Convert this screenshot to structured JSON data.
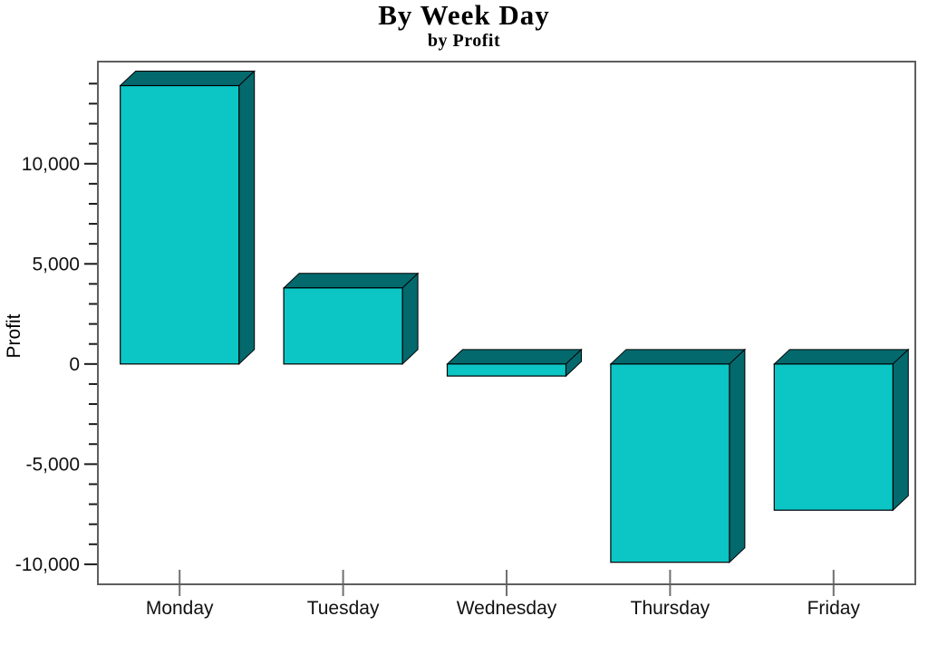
{
  "chart_data": {
    "type": "bar",
    "variant": "3d-block-bars",
    "title": "By Week Day",
    "subtitle": "by Profit",
    "xlabel": "",
    "ylabel": "Profit",
    "categories": [
      "Monday",
      "Tuesday",
      "Wednesday",
      "Thursday",
      "Friday"
    ],
    "values": [
      13900,
      3800,
      -600,
      -9900,
      -7300
    ],
    "ylim": [
      -11000,
      15100
    ],
    "y_major_ticks": [
      {
        "value": 10000,
        "label": "10,000"
      },
      {
        "value": 5000,
        "label": "5,000"
      },
      {
        "value": 0,
        "label": "0"
      },
      {
        "value": -5000,
        "label": "-5,000"
      },
      {
        "value": -10000,
        "label": "-10,000"
      }
    ],
    "y_minor_tick_step": 1000,
    "y_minor_tick_min": -10000,
    "y_minor_tick_max": 14000,
    "grid": false,
    "legend": false,
    "colors": {
      "bar_face": "#0cc5c5",
      "bar_side": "#04696d",
      "bar_top": "#04696d",
      "bar_outline": "#000000",
      "frame": "#5e5e5e",
      "y_tick": "#1a1a1a",
      "x_tick": "#707070",
      "text": "#111111"
    }
  }
}
